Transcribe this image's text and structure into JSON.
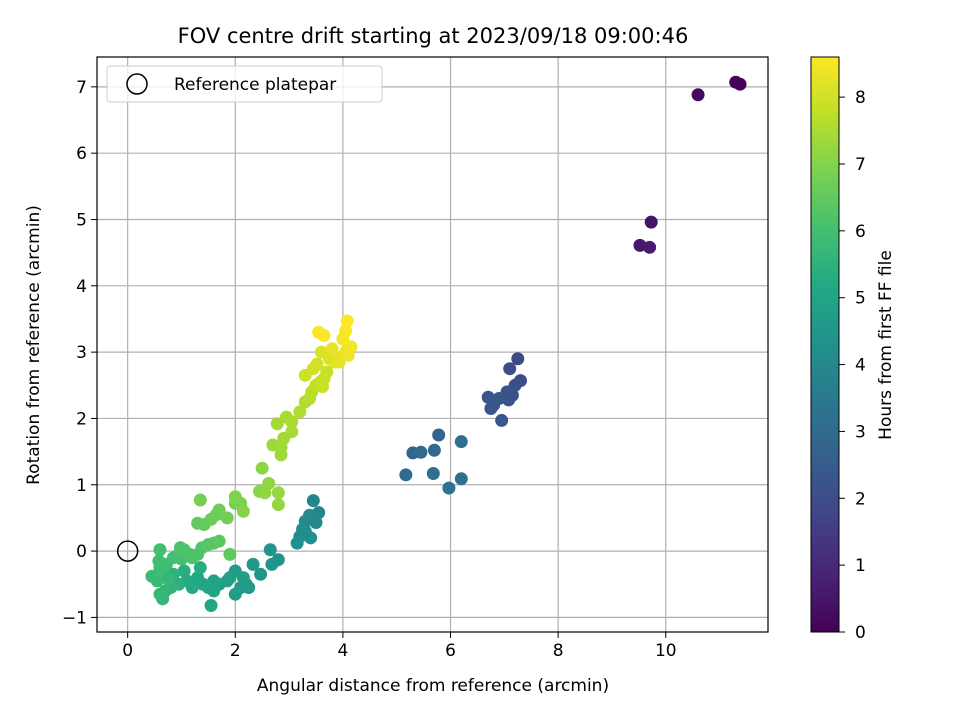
{
  "chart_data": {
    "type": "scatter",
    "title": "FOV centre drift starting at 2023/09/18 09:00:46",
    "xlabel": "Angular distance from reference (arcmin)",
    "ylabel": "Rotation from reference (arcmin)",
    "xlim": [
      -0.57,
      11.9
    ],
    "ylim": [
      -1.22,
      7.45
    ],
    "xticks": [
      0,
      2,
      4,
      6,
      8,
      10
    ],
    "yticks": [
      -1,
      0,
      1,
      2,
      3,
      4,
      5,
      6,
      7
    ],
    "grid": true,
    "legend": {
      "placement": "upper-left",
      "entries": [
        "Reference platepar"
      ]
    },
    "reference_point": {
      "x": 0,
      "y": 0
    },
    "colorbar": {
      "label": "Hours from first FF file",
      "min": 0,
      "max": 8.6,
      "ticks": [
        0,
        1,
        2,
        3,
        4,
        5,
        6,
        7,
        8
      ],
      "colormap": "viridis"
    },
    "series": [
      {
        "points": [
          [
            11.3,
            7.07,
            0.05
          ],
          [
            11.38,
            7.04,
            0.1
          ],
          [
            10.6,
            6.88,
            0.25
          ],
          [
            9.73,
            4.96,
            0.5
          ],
          [
            9.52,
            4.61,
            0.6
          ],
          [
            9.7,
            4.58,
            0.65
          ],
          [
            7.25,
            2.9,
            1.9
          ],
          [
            7.3,
            2.57,
            2.0
          ],
          [
            7.2,
            2.5,
            2.05
          ],
          [
            7.1,
            2.75,
            2.05
          ],
          [
            7.15,
            2.35,
            2.1
          ],
          [
            7.08,
            2.28,
            2.15
          ],
          [
            6.7,
            2.32,
            2.2
          ],
          [
            6.8,
            2.2,
            2.25
          ],
          [
            6.75,
            2.15,
            2.3
          ],
          [
            6.9,
            2.3,
            2.35
          ],
          [
            6.95,
            1.97,
            2.4
          ],
          [
            7.05,
            2.4,
            2.2
          ],
          [
            5.78,
            1.75,
            2.8
          ],
          [
            5.3,
            1.48,
            2.9
          ],
          [
            5.45,
            1.49,
            2.95
          ],
          [
            5.7,
            1.52,
            3.0
          ],
          [
            5.17,
            1.15,
            3.05
          ],
          [
            5.68,
            1.17,
            3.1
          ],
          [
            6.2,
            1.65,
            3.15
          ],
          [
            6.2,
            1.09,
            3.2
          ],
          [
            5.97,
            0.95,
            3.25
          ],
          [
            3.45,
            0.76,
            3.9
          ],
          [
            3.55,
            0.58,
            3.95
          ],
          [
            3.5,
            0.43,
            4.0
          ],
          [
            3.38,
            0.54,
            4.05
          ],
          [
            3.3,
            0.45,
            4.1
          ],
          [
            3.25,
            0.33,
            4.15
          ],
          [
            3.2,
            0.22,
            4.2
          ],
          [
            3.4,
            0.2,
            4.25
          ],
          [
            3.15,
            0.12,
            4.3
          ],
          [
            3.3,
            0.3,
            4.2
          ],
          [
            2.8,
            -0.13,
            4.35
          ],
          [
            2.65,
            0.02,
            4.4
          ],
          [
            2.68,
            -0.2,
            4.45
          ],
          [
            2.47,
            -0.35,
            4.5
          ],
          [
            2.33,
            -0.2,
            4.55
          ],
          [
            2.25,
            -0.55,
            4.6
          ],
          [
            2.1,
            -0.55,
            4.65
          ],
          [
            2.0,
            -0.3,
            4.7
          ],
          [
            2.0,
            -0.65,
            4.75
          ],
          [
            2.15,
            -0.4,
            4.8
          ],
          [
            1.85,
            -0.45,
            4.85
          ],
          [
            1.7,
            -0.5,
            4.9
          ],
          [
            1.6,
            -0.45,
            4.95
          ],
          [
            1.5,
            -0.55,
            5.0
          ],
          [
            1.55,
            -0.82,
            5.05
          ],
          [
            1.4,
            -0.5,
            5.1
          ],
          [
            1.3,
            -0.4,
            5.15
          ],
          [
            1.2,
            -0.55,
            5.2
          ],
          [
            1.1,
            -0.45,
            5.25
          ],
          [
            1.35,
            -0.25,
            5.3
          ],
          [
            1.6,
            -0.6,
            5.0
          ],
          [
            2.2,
            -0.5,
            4.7
          ],
          [
            1.9,
            -0.4,
            4.9
          ],
          [
            1.05,
            -0.3,
            5.35
          ],
          [
            0.95,
            -0.5,
            5.45
          ],
          [
            0.85,
            -0.35,
            5.5
          ],
          [
            0.8,
            -0.55,
            5.55
          ],
          [
            0.7,
            -0.6,
            5.6
          ],
          [
            0.65,
            -0.72,
            5.65
          ],
          [
            0.6,
            -0.65,
            5.7
          ],
          [
            0.55,
            -0.45,
            5.75
          ],
          [
            0.45,
            -0.38,
            5.8
          ],
          [
            0.6,
            -0.25,
            5.85
          ],
          [
            0.72,
            -0.2,
            5.9
          ],
          [
            0.65,
            -0.3,
            5.9
          ],
          [
            0.58,
            -0.15,
            5.95
          ],
          [
            0.6,
            0.02,
            6.0
          ],
          [
            0.85,
            -0.1,
            6.0
          ],
          [
            0.95,
            -0.05,
            6.05
          ],
          [
            0.75,
            -0.42,
            5.7
          ],
          [
            1.0,
            -0.12,
            6.05
          ],
          [
            1.15,
            -0.05,
            6.1
          ],
          [
            0.98,
            0.05,
            6.1
          ],
          [
            1.05,
            0.02,
            6.15
          ],
          [
            1.2,
            -0.1,
            6.15
          ],
          [
            1.3,
            -0.05,
            6.2
          ],
          [
            1.38,
            0.05,
            6.25
          ],
          [
            1.5,
            0.1,
            6.3
          ],
          [
            1.6,
            0.12,
            6.35
          ],
          [
            1.7,
            0.15,
            6.4
          ],
          [
            1.9,
            -0.05,
            6.45
          ],
          [
            1.3,
            0.42,
            6.5
          ],
          [
            1.42,
            0.4,
            6.55
          ],
          [
            1.55,
            0.48,
            6.6
          ],
          [
            1.65,
            0.55,
            6.65
          ],
          [
            1.7,
            0.62,
            6.7
          ],
          [
            1.85,
            0.5,
            6.75
          ],
          [
            1.35,
            0.77,
            6.8
          ],
          [
            2.0,
            0.72,
            6.85
          ],
          [
            2.1,
            0.72,
            6.9
          ],
          [
            2.0,
            0.82,
            6.95
          ],
          [
            2.15,
            0.6,
            7.0
          ],
          [
            2.45,
            0.9,
            7.05
          ],
          [
            2.5,
            1.25,
            7.1
          ],
          [
            2.62,
            1.02,
            7.15
          ],
          [
            2.55,
            0.88,
            7.2
          ],
          [
            2.8,
            0.7,
            7.2
          ],
          [
            2.8,
            0.88,
            7.25
          ],
          [
            2.7,
            1.6,
            7.3
          ],
          [
            2.85,
            1.45,
            7.35
          ],
          [
            2.85,
            1.57,
            7.35
          ],
          [
            2.9,
            1.7,
            7.4
          ],
          [
            2.78,
            1.92,
            7.4
          ],
          [
            3.05,
            1.8,
            7.45
          ],
          [
            2.95,
            2.02,
            7.5
          ],
          [
            3.05,
            1.95,
            7.5
          ],
          [
            3.2,
            2.1,
            7.55
          ],
          [
            3.3,
            2.25,
            7.6
          ],
          [
            3.38,
            2.3,
            7.65
          ],
          [
            3.42,
            2.4,
            7.7
          ],
          [
            3.5,
            2.5,
            7.75
          ],
          [
            3.58,
            2.55,
            7.8
          ],
          [
            3.65,
            2.6,
            7.85
          ],
          [
            3.7,
            2.7,
            7.9
          ],
          [
            3.62,
            2.48,
            7.9
          ],
          [
            3.3,
            2.65,
            7.95
          ],
          [
            3.45,
            2.75,
            8.0
          ],
          [
            3.52,
            2.82,
            8.05
          ],
          [
            3.6,
            3.0,
            8.1
          ],
          [
            3.75,
            2.9,
            8.15
          ],
          [
            3.85,
            2.85,
            8.2
          ],
          [
            3.95,
            2.92,
            8.25
          ],
          [
            3.8,
            3.05,
            8.3
          ],
          [
            4.05,
            3.0,
            8.35
          ],
          [
            4.1,
            2.95,
            8.4
          ],
          [
            4.15,
            3.08,
            8.45
          ],
          [
            4.0,
            3.2,
            8.5
          ],
          [
            4.05,
            3.32,
            8.55
          ],
          [
            4.08,
            3.47,
            8.6
          ],
          [
            3.55,
            3.3,
            8.55
          ],
          [
            3.65,
            3.25,
            8.6
          ],
          [
            3.93,
            2.85,
            8.3
          ]
        ]
      }
    ]
  }
}
